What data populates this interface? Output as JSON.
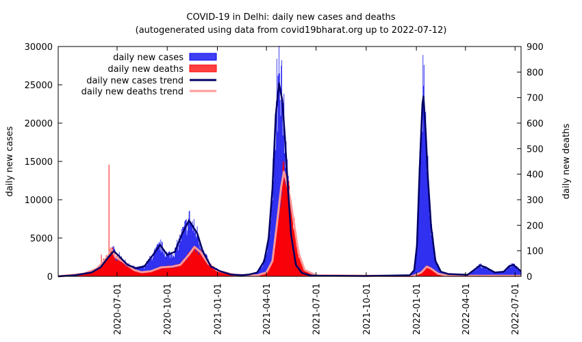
{
  "chart_data": {
    "type": "bar",
    "title": "COVID-19 in Delhi: daily new cases and deaths",
    "subtitle": "(autogenerated using data from covid19bharat.org up to 2022-07-12)",
    "ylabel_left": "daily new cases",
    "ylabel_right": "daily new deaths",
    "ylim_left": [
      0,
      30000
    ],
    "ylim_right": [
      0,
      900
    ],
    "yticks_left": [
      0,
      5000,
      10000,
      15000,
      20000,
      25000,
      30000
    ],
    "yticks_right": [
      0,
      100,
      200,
      300,
      400,
      500,
      600,
      700,
      800,
      900
    ],
    "xlim": [
      "2020-03-15",
      "2022-07-12"
    ],
    "xticks": [
      "2020-07-01",
      "2020-10-01",
      "2021-01-01",
      "2021-04-01",
      "2021-07-01",
      "2021-10-01",
      "2022-01-01",
      "2022-04-01",
      "2022-07-01"
    ],
    "legend": {
      "position": "top-left",
      "entries": [
        "daily new cases",
        "daily new deaths",
        "daily new cases trend",
        "daily new deaths trend"
      ]
    },
    "colors": {
      "cases": "#0000ee",
      "deaths": "#ff0000",
      "cases_trend": "#000066",
      "deaths_trend": "#ff9999"
    },
    "cases_trend": [
      [
        "2020-03-15",
        0
      ],
      [
        "2020-04-15",
        150
      ],
      [
        "2020-05-15",
        500
      ],
      [
        "2020-06-01",
        1200
      ],
      [
        "2020-06-15",
        2500
      ],
      [
        "2020-06-25",
        3300
      ],
      [
        "2020-07-05",
        2600
      ],
      [
        "2020-07-20",
        1500
      ],
      [
        "2020-08-05",
        1050
      ],
      [
        "2020-08-20",
        1300
      ],
      [
        "2020-09-05",
        2800
      ],
      [
        "2020-09-18",
        4100
      ],
      [
        "2020-10-01",
        2800
      ],
      [
        "2020-10-15",
        3200
      ],
      [
        "2020-10-28",
        5500
      ],
      [
        "2020-11-10",
        7300
      ],
      [
        "2020-11-25",
        5600
      ],
      [
        "2020-12-05",
        3300
      ],
      [
        "2020-12-20",
        1300
      ],
      [
        "2021-01-05",
        700
      ],
      [
        "2021-01-25",
        250
      ],
      [
        "2021-02-15",
        150
      ],
      [
        "2021-03-01",
        250
      ],
      [
        "2021-03-15",
        500
      ],
      [
        "2021-03-28",
        2000
      ],
      [
        "2021-04-05",
        5000
      ],
      [
        "2021-04-12",
        11500
      ],
      [
        "2021-04-18",
        21000
      ],
      [
        "2021-04-24",
        25200
      ],
      [
        "2021-04-30",
        23000
      ],
      [
        "2021-05-05",
        18000
      ],
      [
        "2021-05-10",
        12000
      ],
      [
        "2021-05-16",
        5500
      ],
      [
        "2021-05-25",
        1500
      ],
      [
        "2021-06-05",
        450
      ],
      [
        "2021-06-20",
        120
      ],
      [
        "2021-07-05",
        80
      ],
      [
        "2021-10-01",
        40
      ],
      [
        "2021-12-20",
        150
      ],
      [
        "2021-12-28",
        800
      ],
      [
        "2022-01-02",
        4000
      ],
      [
        "2022-01-07",
        14000
      ],
      [
        "2022-01-12",
        22500
      ],
      [
        "2022-01-14",
        23500
      ],
      [
        "2022-01-18",
        19000
      ],
      [
        "2022-01-22",
        13000
      ],
      [
        "2022-01-28",
        6500
      ],
      [
        "2022-02-05",
        2000
      ],
      [
        "2022-02-15",
        600
      ],
      [
        "2022-03-01",
        300
      ],
      [
        "2022-04-05",
        200
      ],
      [
        "2022-04-20",
        1000
      ],
      [
        "2022-04-28",
        1450
      ],
      [
        "2022-05-10",
        1100
      ],
      [
        "2022-05-25",
        500
      ],
      [
        "2022-06-10",
        600
      ],
      [
        "2022-06-20",
        1300
      ],
      [
        "2022-06-28",
        1500
      ],
      [
        "2022-07-12",
        650
      ]
    ],
    "deaths_trend": [
      [
        "2020-03-15",
        0
      ],
      [
        "2020-05-01",
        10
      ],
      [
        "2020-05-25",
        30
      ],
      [
        "2020-06-05",
        55
      ],
      [
        "2020-06-15",
        80
      ],
      [
        "2020-06-20",
        110
      ],
      [
        "2020-06-28",
        75
      ],
      [
        "2020-07-10",
        60
      ],
      [
        "2020-08-01",
        25
      ],
      [
        "2020-08-15",
        16
      ],
      [
        "2020-09-01",
        20
      ],
      [
        "2020-09-20",
        35
      ],
      [
        "2020-10-10",
        38
      ],
      [
        "2020-10-25",
        45
      ],
      [
        "2020-11-10",
        85
      ],
      [
        "2020-11-20",
        115
      ],
      [
        "2020-12-01",
        95
      ],
      [
        "2020-12-15",
        50
      ],
      [
        "2021-01-01",
        22
      ],
      [
        "2021-02-01",
        6
      ],
      [
        "2021-03-15",
        4
      ],
      [
        "2021-04-01",
        15
      ],
      [
        "2021-04-12",
        60
      ],
      [
        "2021-04-20",
        200
      ],
      [
        "2021-04-28",
        350
      ],
      [
        "2021-05-03",
        410
      ],
      [
        "2021-05-08",
        370
      ],
      [
        "2021-05-15",
        300
      ],
      [
        "2021-05-22",
        200
      ],
      [
        "2021-05-30",
        90
      ],
      [
        "2021-06-10",
        25
      ],
      [
        "2021-07-01",
        4
      ],
      [
        "2021-12-25",
        1
      ],
      [
        "2022-01-10",
        15
      ],
      [
        "2022-01-20",
        38
      ],
      [
        "2022-01-28",
        30
      ],
      [
        "2022-02-10",
        10
      ],
      [
        "2022-03-01",
        2
      ],
      [
        "2022-07-12",
        2
      ]
    ],
    "spikes": {
      "cases": [
        [
          "2021-04-20",
          28400
        ],
        [
          "2021-04-25",
          26500
        ],
        [
          "2021-04-28",
          27500
        ],
        [
          "2022-01-13",
          28900
        ],
        [
          "2022-01-15",
          27600
        ],
        [
          "2020-11-11",
          8600
        ],
        [
          "2020-06-23",
          3900
        ]
      ],
      "deaths": [
        [
          "2020-06-16",
          437
        ],
        [
          "2020-06-02",
          85
        ],
        [
          "2021-05-03",
          450
        ],
        [
          "2021-05-06",
          400
        ]
      ]
    }
  }
}
